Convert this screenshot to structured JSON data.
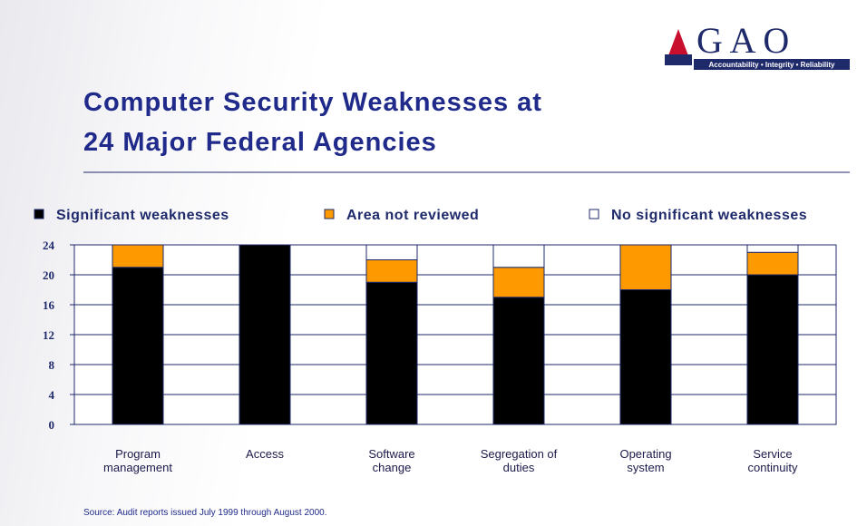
{
  "logo": {
    "text": "G A O",
    "tagline": "Accountability • Integrity • Reliability"
  },
  "chart_data": {
    "type": "stacked_bar",
    "title": "Computer Security Weaknesses at",
    "subtitle": "24 Major Federal Agencies",
    "source": "Source:  Audit reports issued July 1999 through August 2000.",
    "categories": [
      "Program management",
      "Access",
      "Software change",
      "Segregation of duties",
      "Operating system",
      "Service continuity"
    ],
    "series": [
      {
        "name": "Significant weaknesses",
        "color": "#000000",
        "values": [
          21,
          24,
          19,
          17,
          18,
          20
        ]
      },
      {
        "name": "Area not reviewed",
        "color": "#ff9900",
        "values": [
          3,
          0,
          3,
          4,
          6,
          3
        ]
      },
      {
        "name": "No significant weaknesses",
        "color": "#ffffff",
        "values": [
          0,
          0,
          2,
          3,
          0,
          1
        ]
      }
    ],
    "ylim": [
      0,
      24
    ],
    "yticks": [
      0,
      4,
      8,
      12,
      16,
      20,
      24
    ],
    "grid": true
  }
}
